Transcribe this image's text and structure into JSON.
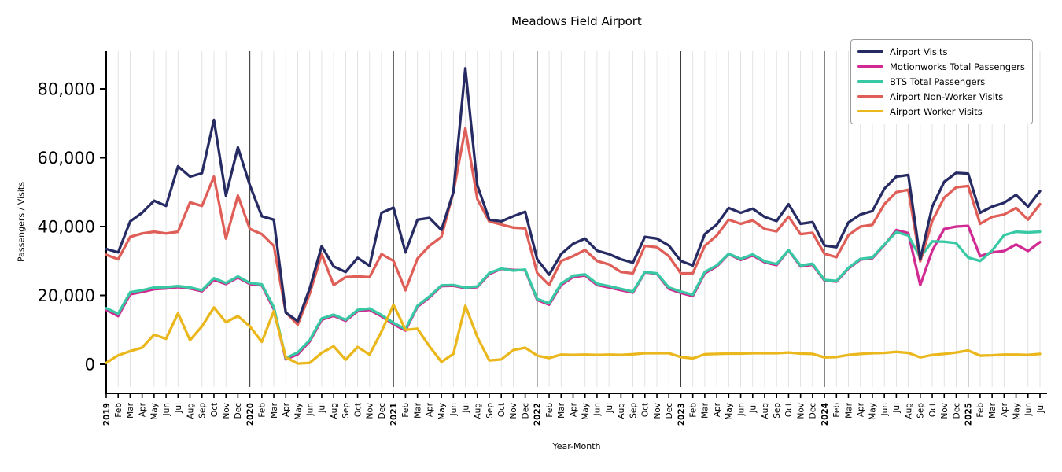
{
  "title": "Meadows Field Airport",
  "chart_data": {
    "type": "line",
    "title": "Meadows Field Airport",
    "xlabel": "Year-Month",
    "ylabel": "Passengers / Visits",
    "grid": "vertical-monthly",
    "legend_position": "upper right",
    "ylim": [
      -8500,
      91000
    ],
    "ytick_values": [
      0,
      20000,
      40000,
      60000,
      80000
    ],
    "ytick_labels": [
      "0",
      "20,000",
      "40,000",
      "60,000",
      "80,000"
    ],
    "categories": [
      "2019",
      "Feb",
      "Mar",
      "Apr",
      "May",
      "Jun",
      "Jul",
      "Aug",
      "Sep",
      "Oct",
      "Nov",
      "Dec",
      "2020",
      "Feb",
      "Mar",
      "Apr",
      "May",
      "Jun",
      "Jul",
      "Aug",
      "Sep",
      "Oct",
      "Nov",
      "Dec",
      "2021",
      "Feb",
      "Mar",
      "Apr",
      "May",
      "Jun",
      "Jul",
      "Aug",
      "Sep",
      "Oct",
      "Nov",
      "Dec",
      "2022",
      "Feb",
      "Mar",
      "Apr",
      "May",
      "Jun",
      "Jul",
      "Aug",
      "Sep",
      "Oct",
      "Nov",
      "Dec",
      "2023",
      "Feb",
      "Mar",
      "Apr",
      "May",
      "Jun",
      "Jul",
      "Aug",
      "Sep",
      "Oct",
      "Nov",
      "Dec",
      "2024",
      "Feb",
      "Mar",
      "Apr",
      "May",
      "Jun",
      "Jul",
      "Aug",
      "Sep",
      "Oct",
      "Nov",
      "Dec",
      "2025",
      "Feb",
      "Mar",
      "Apr",
      "May",
      "Jun",
      "Jul"
    ],
    "series": [
      {
        "name": "Airport Visits",
        "color": "#262b63",
        "values": [
          33500,
          32500,
          41500,
          44000,
          47500,
          46000,
          57500,
          54500,
          55500,
          71000,
          49000,
          63000,
          52000,
          43000,
          42000,
          15000,
          12500,
          22000,
          34300,
          28400,
          26800,
          30900,
          28600,
          44000,
          45500,
          32500,
          42000,
          42500,
          39000,
          50000,
          86000,
          52000,
          42000,
          41500,
          43000,
          44300,
          30500,
          26000,
          32000,
          35000,
          36500,
          33000,
          32000,
          30500,
          29500,
          37000,
          36500,
          34500,
          30000,
          28700,
          37800,
          40600,
          45400,
          44000,
          45200,
          42800,
          41600,
          46500,
          40800,
          41300,
          34500,
          34000,
          41200,
          43500,
          44500,
          51000,
          54500,
          55000,
          30500,
          45800,
          53000,
          55600,
          55400,
          44000,
          45800,
          46900,
          49200,
          45800,
          50300
        ]
      },
      {
        "name": "Motionworks Total Passengers",
        "color": "#d12a93",
        "values": [
          15800,
          14000,
          20300,
          21000,
          21800,
          22000,
          22400,
          22000,
          21200,
          24500,
          23300,
          25200,
          23300,
          22900,
          16000,
          1400,
          2900,
          6600,
          12900,
          14100,
          12600,
          15400,
          15800,
          13900,
          11600,
          9800,
          16700,
          19400,
          22700,
          22800,
          22100,
          22400,
          26200,
          27700,
          27400,
          27300,
          18700,
          17300,
          23000,
          25300,
          25800,
          23000,
          22300,
          21500,
          20800,
          26700,
          26300,
          21900,
          20700,
          19800,
          26400,
          28400,
          32000,
          30300,
          31600,
          29600,
          28800,
          33100,
          28400,
          28900,
          24300,
          24000,
          27800,
          30400,
          30800,
          34600,
          39000,
          38100,
          23000,
          33000,
          39300,
          40000,
          40200,
          31400,
          32500,
          32900,
          34800,
          32900,
          35500
        ]
      },
      {
        "name": "BTS Total Passengers",
        "color": "#38c9a4",
        "values": [
          16300,
          14700,
          20900,
          21500,
          22300,
          22400,
          22700,
          22300,
          21500,
          25000,
          23600,
          25500,
          23600,
          23200,
          16600,
          1800,
          3400,
          7000,
          13300,
          14400,
          12900,
          15800,
          16200,
          14300,
          12000,
          10200,
          17000,
          19700,
          22900,
          23000,
          22300,
          22600,
          26500,
          27800,
          27200,
          27500,
          19000,
          17700,
          23400,
          25700,
          26100,
          23400,
          22700,
          21900,
          21100,
          26800,
          26400,
          22300,
          21100,
          20200,
          26800,
          28700,
          32100,
          30600,
          31900,
          29900,
          29100,
          33200,
          28700,
          29200,
          24500,
          24200,
          28000,
          30600,
          31000,
          34800,
          38400,
          37400,
          31000,
          35700,
          35600,
          35200,
          31000,
          30000,
          33000,
          37500,
          38500,
          38300,
          38500
        ]
      },
      {
        "name": "Airport Non-Worker Visits",
        "color": "#df5e58",
        "values": [
          31800,
          30500,
          37000,
          38000,
          38500,
          38000,
          38500,
          47000,
          46000,
          54500,
          36500,
          49000,
          39300,
          37800,
          34400,
          15100,
          11500,
          20500,
          32000,
          23000,
          25300,
          25500,
          25300,
          32000,
          30000,
          21500,
          30700,
          34400,
          37000,
          50000,
          68500,
          48000,
          41500,
          40600,
          39700,
          39500,
          26500,
          23000,
          30000,
          31400,
          33200,
          30000,
          29000,
          26800,
          26400,
          34400,
          34000,
          31400,
          26400,
          26400,
          34400,
          37400,
          42000,
          40800,
          41800,
          39300,
          38600,
          42900,
          37800,
          38200,
          32100,
          31100,
          37500,
          40000,
          40500,
          46500,
          50000,
          50700,
          29900,
          41600,
          48400,
          51400,
          51800,
          40800,
          42800,
          43500,
          45400,
          42000,
          46500
        ]
      },
      {
        "name": "Airport Worker Visits",
        "color": "#eab71c",
        "values": [
          400,
          2600,
          3800,
          4800,
          8600,
          7400,
          14800,
          7000,
          11000,
          16500,
          12200,
          14000,
          11000,
          6500,
          15400,
          2000,
          200,
          400,
          3300,
          5200,
          1300,
          5000,
          2800,
          9500,
          17300,
          10000,
          10300,
          5200,
          700,
          3000,
          17000,
          7900,
          1100,
          1400,
          4100,
          4800,
          2500,
          1800,
          2800,
          2700,
          2800,
          2700,
          2800,
          2700,
          2900,
          3200,
          3200,
          3200,
          2100,
          1700,
          2900,
          3000,
          3100,
          3100,
          3200,
          3200,
          3200,
          3400,
          3100,
          3000,
          2000,
          2100,
          2700,
          3000,
          3200,
          3300,
          3600,
          3300,
          2000,
          2700,
          3000,
          3400,
          4000,
          2500,
          2600,
          2800,
          2800,
          2700,
          3000
        ]
      }
    ],
    "draw_order": [
      1,
      2,
      3,
      4,
      0
    ],
    "style": {
      "grid_color": "#dcdcdc",
      "year_line_color": "#3c3c3c",
      "axis_color": "#000000",
      "line_width": 3.3
    }
  }
}
